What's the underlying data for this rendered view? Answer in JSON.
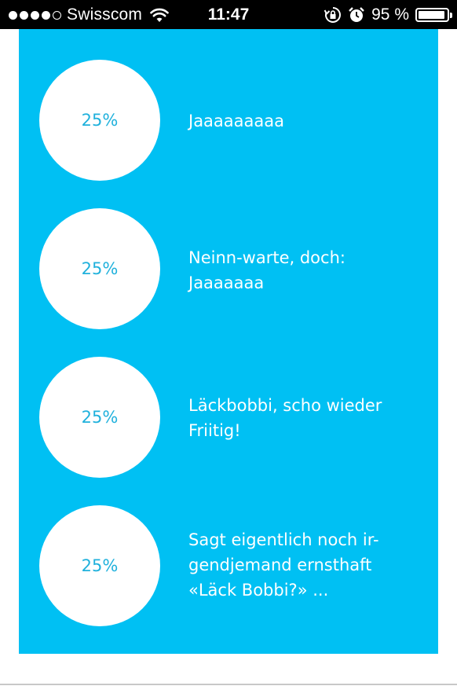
{
  "status_bar": {
    "carrier": "Swisscom",
    "signal_bars_filled": 4,
    "signal_bars_total": 5,
    "time": "11:47",
    "battery_percent": "95 %",
    "battery_level": 0.95,
    "icons": [
      "wifi-icon",
      "rotation-lock-icon",
      "alarm-icon",
      "battery-icon"
    ]
  },
  "poll": {
    "accent_color": "#00c0f3",
    "percent_color": "#20b1dc",
    "options": [
      {
        "percent": "25%",
        "lines": [
          "Jaaaaaaaaa"
        ]
      },
      {
        "percent": "25%",
        "lines": [
          "Neinn-warte, doch:",
          "Jaaaaaaa"
        ]
      },
      {
        "percent": "25%",
        "lines": [
          "Läckbobbi, scho wieder",
          "Friitig!"
        ]
      },
      {
        "percent": "25%",
        "lines": [
          "Sagt eigentlich noch ir-",
          "gendjemand ernsthaft",
          "«Läck Bobbi?» ..."
        ]
      }
    ]
  }
}
